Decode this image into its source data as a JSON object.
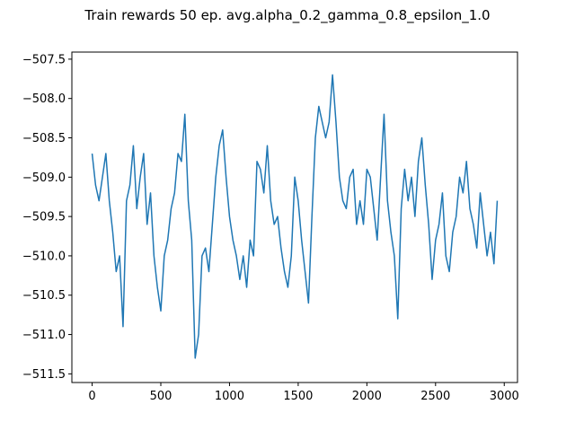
{
  "chart_data": {
    "type": "line",
    "title": "Train rewards 50 ep. avg.alpha_0.2_gamma_0.8_epsilon_1.0",
    "x": [
      0,
      25,
      50,
      75,
      100,
      125,
      150,
      175,
      200,
      225,
      250,
      275,
      300,
      325,
      350,
      375,
      400,
      425,
      450,
      475,
      500,
      525,
      550,
      575,
      600,
      625,
      650,
      675,
      700,
      725,
      750,
      775,
      800,
      825,
      850,
      875,
      900,
      925,
      950,
      975,
      1000,
      1025,
      1050,
      1075,
      1100,
      1125,
      1150,
      1175,
      1200,
      1225,
      1250,
      1275,
      1300,
      1325,
      1350,
      1375,
      1400,
      1425,
      1450,
      1475,
      1500,
      1525,
      1550,
      1575,
      1600,
      1625,
      1650,
      1675,
      1700,
      1725,
      1750,
      1775,
      1800,
      1825,
      1850,
      1875,
      1900,
      1925,
      1950,
      1975,
      2000,
      2025,
      2050,
      2075,
      2100,
      2125,
      2150,
      2175,
      2200,
      2225,
      2250,
      2275,
      2300,
      2325,
      2350,
      2375,
      2400,
      2425,
      2450,
      2475,
      2500,
      2525,
      2550,
      2575,
      2600,
      2625,
      2650,
      2675,
      2700,
      2725,
      2750,
      2775,
      2800,
      2825,
      2850,
      2875,
      2900,
      2925,
      2949
    ],
    "series": [
      {
        "name": "rewards",
        "color": "#1f77b4",
        "values": [
          -508.7,
          -509.1,
          -509.3,
          -509.0,
          -508.7,
          -509.3,
          -509.7,
          -510.2,
          -510.0,
          -510.9,
          -509.3,
          -509.1,
          -508.6,
          -509.4,
          -509.0,
          -508.7,
          -509.6,
          -509.2,
          -510.0,
          -510.4,
          -510.7,
          -510.0,
          -509.8,
          -509.4,
          -509.2,
          -508.7,
          -508.8,
          -508.2,
          -509.3,
          -509.8,
          -511.3,
          -511.0,
          -510.0,
          -509.9,
          -510.2,
          -509.6,
          -509.0,
          -508.6,
          -508.4,
          -509.0,
          -509.5,
          -509.8,
          -510.0,
          -510.3,
          -510.0,
          -510.4,
          -509.8,
          -510.0,
          -508.8,
          -508.9,
          -509.2,
          -508.6,
          -509.3,
          -509.6,
          -509.5,
          -509.9,
          -510.2,
          -510.4,
          -510.0,
          -509.0,
          -509.3,
          -509.8,
          -510.2,
          -510.6,
          -509.5,
          -508.5,
          -508.1,
          -508.3,
          -508.5,
          -508.3,
          -507.7,
          -508.3,
          -509.0,
          -509.3,
          -509.4,
          -509.0,
          -508.9,
          -509.6,
          -509.3,
          -509.6,
          -508.9,
          -509.0,
          -509.4,
          -509.8,
          -509.0,
          -508.2,
          -509.3,
          -509.7,
          -510.0,
          -510.8,
          -509.4,
          -508.9,
          -509.3,
          -509.0,
          -509.5,
          -508.8,
          -508.5,
          -509.1,
          -509.6,
          -510.3,
          -509.8,
          -509.6,
          -509.2,
          -510.0,
          -510.2,
          -509.7,
          -509.5,
          -509.0,
          -509.2,
          -508.8,
          -509.4,
          -509.6,
          -509.9,
          -509.2,
          -509.6,
          -510.0,
          -509.7,
          -510.1,
          -509.3
        ]
      }
    ],
    "xlim": [
      -147.5,
      3096.5
    ],
    "xticks": [
      0,
      500,
      1000,
      1500,
      2000,
      2500,
      3000
    ],
    "ylim": [
      -511.61,
      -507.41
    ],
    "yticks": [
      {
        "value": -511.5,
        "label": "−511.5"
      },
      {
        "value": -511.0,
        "label": "−511.0"
      },
      {
        "value": -510.5,
        "label": "−510.5"
      },
      {
        "value": -510.0,
        "label": "−510.0"
      },
      {
        "value": -509.5,
        "label": "−509.5"
      },
      {
        "value": -509.0,
        "label": "−509.0"
      },
      {
        "value": -508.5,
        "label": "−508.5"
      },
      {
        "value": -508.0,
        "label": "−508.0"
      },
      {
        "value": -507.5,
        "label": "−507.5"
      }
    ],
    "grid": false
  }
}
